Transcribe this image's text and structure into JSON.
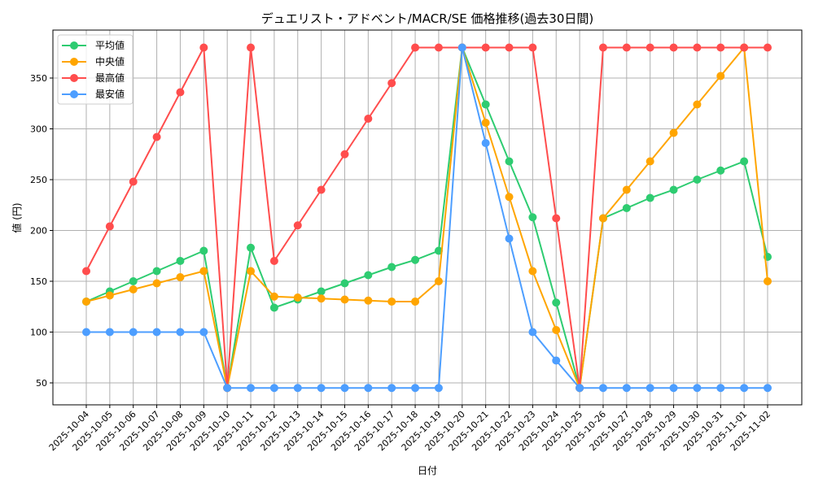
{
  "chart_data": {
    "type": "line",
    "title": "デュエリスト・アドベント/MACR/SE 価格推移(過去30日間)",
    "xlabel": "日付",
    "ylabel": "値 (円)",
    "ylim": [
      28,
      395
    ],
    "yticks": [
      50,
      100,
      150,
      200,
      250,
      300,
      350
    ],
    "grid": true,
    "legend_position": "upper left",
    "categories": [
      "2025-10-04",
      "2025-10-05",
      "2025-10-06",
      "2025-10-07",
      "2025-10-08",
      "2025-10-09",
      "2025-10-10",
      "2025-10-11",
      "2025-10-12",
      "2025-10-13",
      "2025-10-14",
      "2025-10-15",
      "2025-10-16",
      "2025-10-17",
      "2025-10-18",
      "2025-10-19",
      "2025-10-20",
      "2025-10-21",
      "2025-10-22",
      "2025-10-23",
      "2025-10-24",
      "2025-10-25",
      "2025-10-26",
      "2025-10-27",
      "2025-10-28",
      "2025-10-29",
      "2025-10-30",
      "2025-10-31",
      "2025-11-01",
      "2025-11-02"
    ],
    "series": [
      {
        "name": "平均値",
        "color": "#2ecc71",
        "values": [
          130,
          140,
          150,
          160,
          170,
          180,
          45,
          183,
          124,
          132,
          140,
          148,
          156,
          164,
          171,
          180,
          380,
          324,
          268,
          213,
          129,
          45,
          212,
          222,
          232,
          240,
          250,
          259,
          268,
          174
        ]
      },
      {
        "name": "中央値",
        "color": "#ffa500",
        "values": [
          130,
          136,
          142,
          148,
          154,
          160,
          45,
          160,
          135,
          134,
          133,
          132,
          131,
          130,
          130,
          150,
          380,
          306,
          233,
          160,
          102,
          45,
          212,
          240,
          268,
          296,
          324,
          352,
          380,
          150
        ]
      },
      {
        "name": "最高値",
        "color": "#ff4d4d",
        "values": [
          160,
          204,
          248,
          292,
          336,
          380,
          45,
          380,
          170,
          205,
          240,
          275,
          310,
          345,
          380,
          380,
          380,
          380,
          380,
          380,
          212,
          45,
          380,
          380,
          380,
          380,
          380,
          380,
          380,
          380
        ]
      },
      {
        "name": "最安値",
        "color": "#4d9eff",
        "values": [
          100,
          100,
          100,
          100,
          100,
          100,
          45,
          45,
          45,
          45,
          45,
          45,
          45,
          45,
          45,
          45,
          380,
          286,
          192,
          100,
          72,
          45,
          45,
          45,
          45,
          45,
          45,
          45,
          45,
          45
        ]
      }
    ]
  }
}
